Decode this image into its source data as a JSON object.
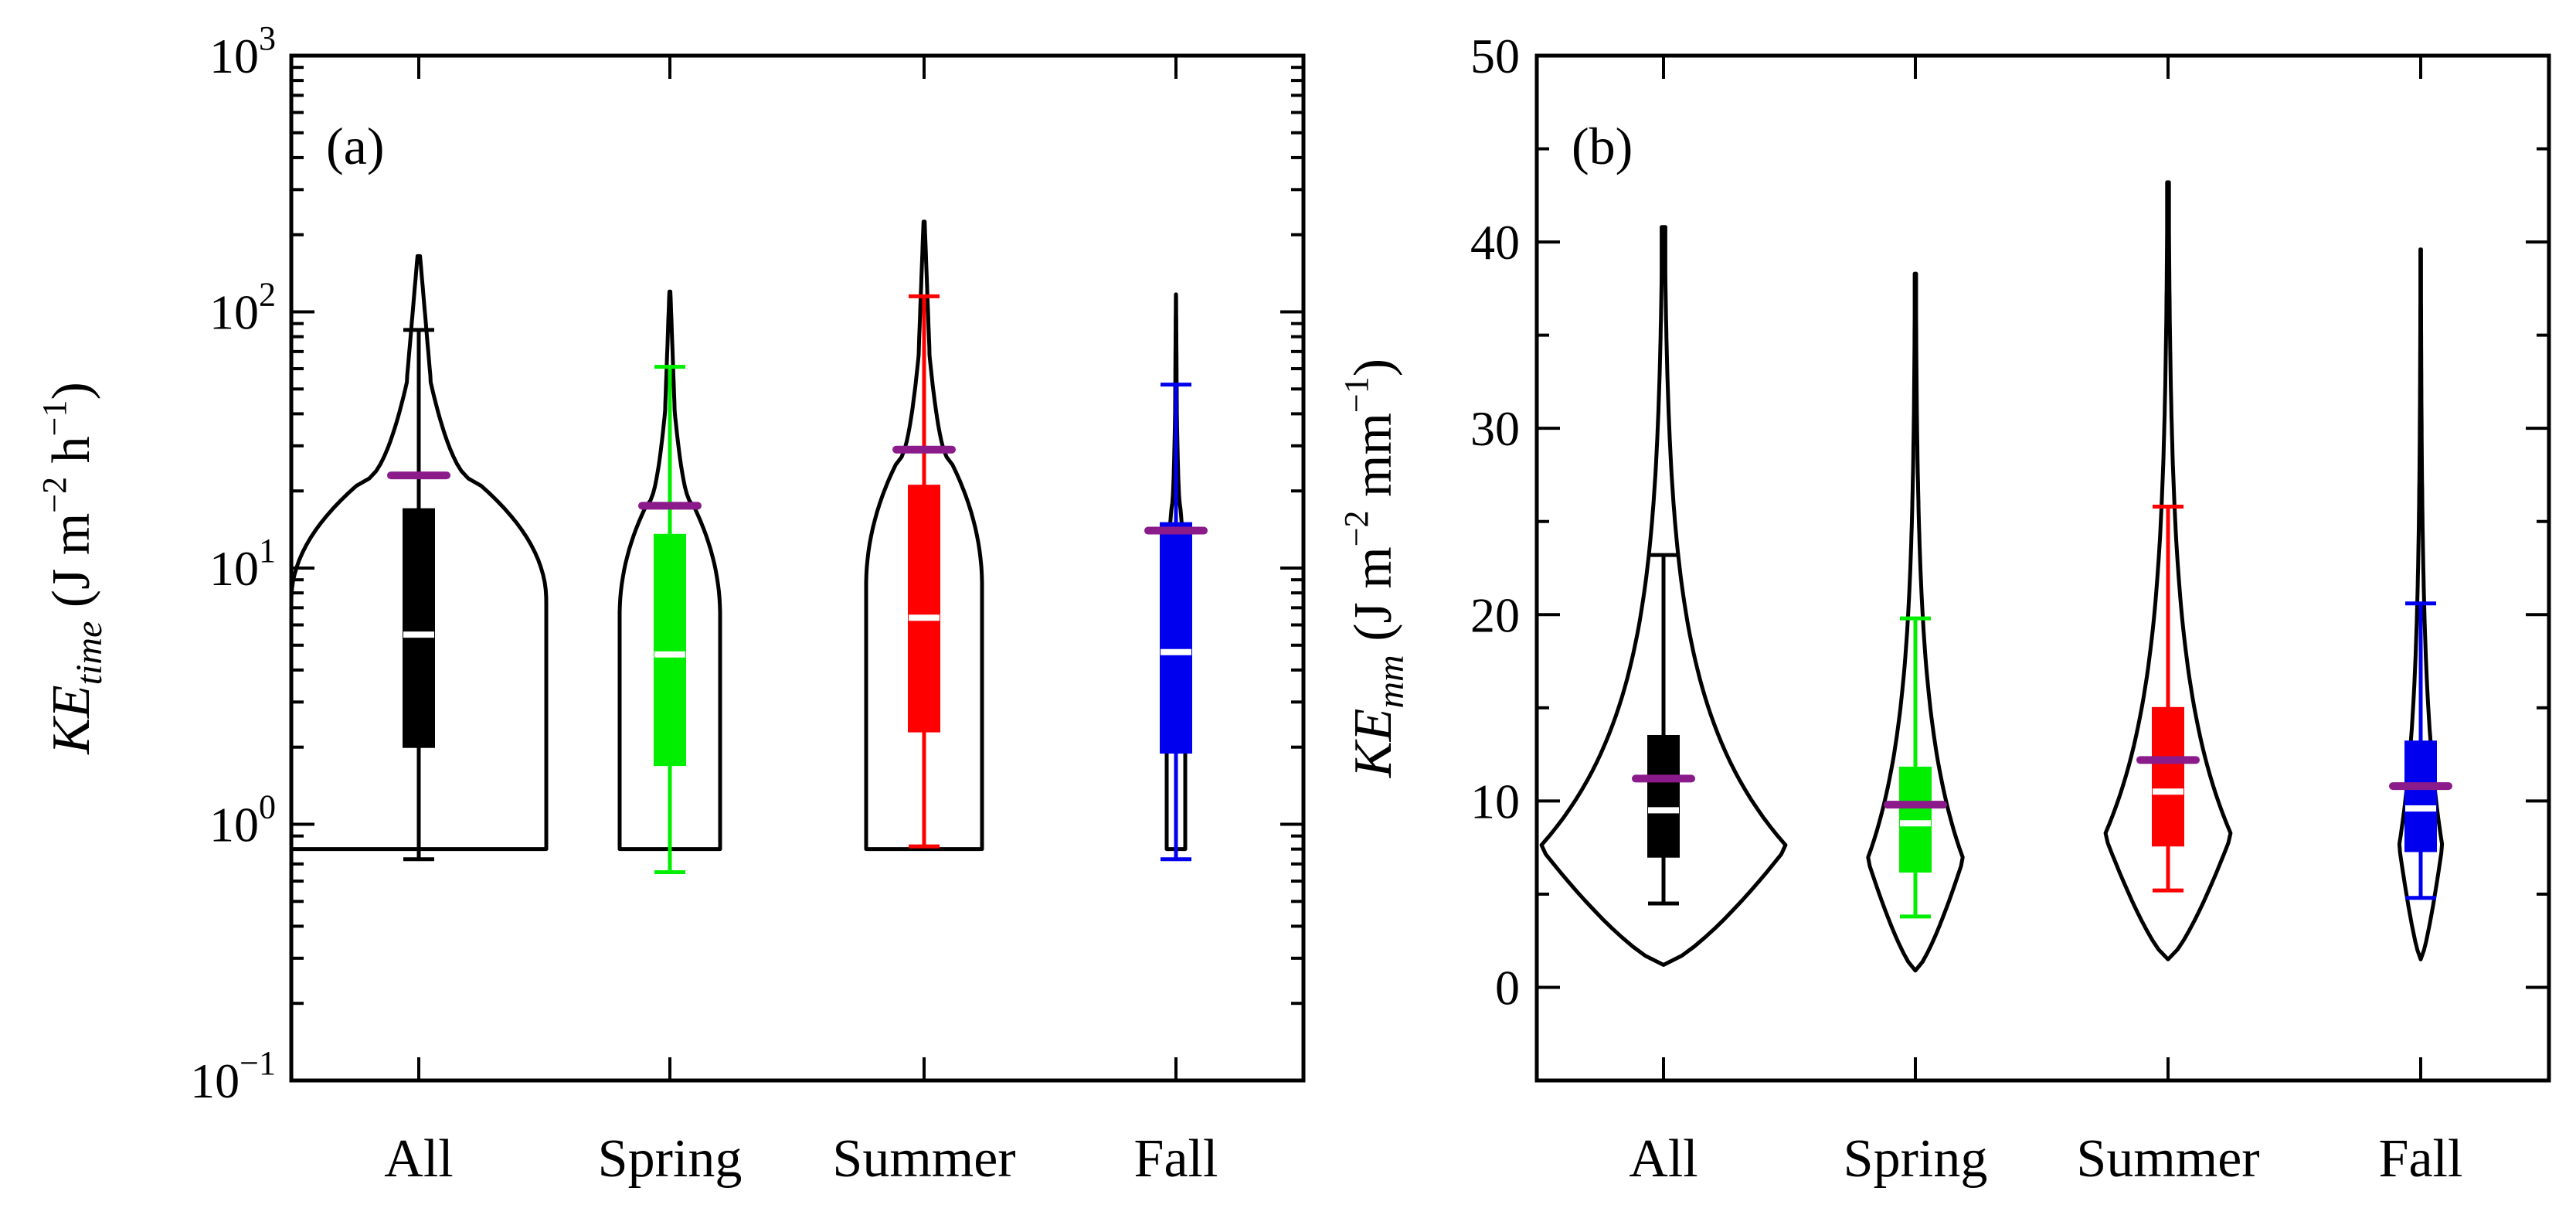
{
  "figure": {
    "description_labels": [
      "(a)",
      "(b)"
    ]
  },
  "chart_data": [
    {
      "type": "violin+box",
      "panel_label": "(a)",
      "yscale": "log",
      "ylim": [
        0.1,
        1000
      ],
      "yticks": [
        {
          "base": "10",
          "exp": "−1"
        },
        {
          "base": "10",
          "exp": "0"
        },
        {
          "base": "10",
          "exp": "1"
        },
        {
          "base": "10",
          "exp": "2"
        },
        {
          "base": "10",
          "exp": "3"
        }
      ],
      "ylabel": {
        "main": "KE",
        "sub": "time",
        "units_prefix": " (J m",
        "sup1": "−2",
        "mid": " h",
        "sup2": "−1",
        "units_suffix": ")"
      },
      "categories": [
        "All",
        "Spring",
        "Summer",
        "Fall"
      ],
      "colors": [
        "#000000",
        "#00ee00",
        "#ff0000",
        "#0000ee"
      ],
      "mean_color": "#8b1a8b",
      "series": [
        {
          "name": "All",
          "whisker_low": 0.73,
          "q1": 2.0,
          "median": 5.5,
          "q3": 17,
          "whisker_high": 85,
          "mean": 23,
          "violin_max": 165,
          "violin_min": 0.8
        },
        {
          "name": "Spring",
          "whisker_low": 0.65,
          "q1": 1.7,
          "median": 4.6,
          "q3": 13.5,
          "whisker_high": 61,
          "mean": 17.5,
          "violin_max": 120,
          "violin_min": 0.8
        },
        {
          "name": "Summer",
          "whisker_low": 0.82,
          "q1": 2.3,
          "median": 6.4,
          "q3": 21,
          "whisker_high": 115,
          "mean": 29,
          "violin_max": 225,
          "violin_min": 0.8
        },
        {
          "name": "Fall",
          "whisker_low": 0.73,
          "q1": 1.9,
          "median": 4.7,
          "q3": 15,
          "whisker_high": 52,
          "mean": 14,
          "violin_max": 117,
          "violin_min": 0.8
        }
      ]
    },
    {
      "type": "violin+box",
      "panel_label": "(b)",
      "yscale": "linear",
      "ylim": [
        -5,
        50
      ],
      "yticks": [
        "0",
        "10",
        "20",
        "30",
        "40",
        "50"
      ],
      "ylabel": {
        "main": "KE",
        "sub": "mm",
        "units_prefix": " (J m",
        "sup1": "−2",
        "mid": " mm",
        "sup2": "−1",
        "units_suffix": ")"
      },
      "categories": [
        "All",
        "Spring",
        "Summer",
        "Fall"
      ],
      "colors": [
        "#000000",
        "#00ee00",
        "#ff0000",
        "#0000ee"
      ],
      "mean_color": "#8b1a8b",
      "series": [
        {
          "name": "All",
          "whisker_low": 4.5,
          "q1": 7.0,
          "median": 9.5,
          "q3": 13.5,
          "whisker_high": 23.2,
          "mean": 11.2,
          "violin_max": 40.8,
          "violin_min": 1.2
        },
        {
          "name": "Spring",
          "whisker_low": 3.8,
          "q1": 6.2,
          "median": 8.8,
          "q3": 11.8,
          "whisker_high": 19.8,
          "mean": 9.8,
          "violin_max": 38.3,
          "violin_min": 0.9
        },
        {
          "name": "Summer",
          "whisker_low": 5.2,
          "q1": 7.6,
          "median": 10.5,
          "q3": 15.0,
          "whisker_high": 25.8,
          "mean": 12.2,
          "violin_max": 43.2,
          "violin_min": 1.5
        },
        {
          "name": "Fall",
          "whisker_low": 4.8,
          "q1": 7.3,
          "median": 9.6,
          "q3": 13.2,
          "whisker_high": 20.6,
          "mean": 10.8,
          "violin_max": 39.6,
          "violin_min": 1.5
        }
      ]
    }
  ]
}
